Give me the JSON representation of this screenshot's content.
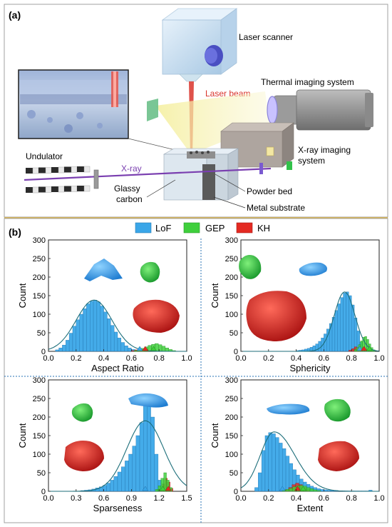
{
  "figure": {
    "panel_a": {
      "label": "(a)",
      "labels": {
        "laser_scanner": "Laser scanner",
        "laser_beam": "Laser beam",
        "thermal_imaging_system": "Thermal imaging system",
        "xray_imaging_1": "X-ray imaging",
        "xray_imaging_2": "system",
        "undulator": "Undulator",
        "xray": "X-ray",
        "glassy_1": "Glassy",
        "glassy_2": "carbon",
        "powder_bed": "Powder bed",
        "metal_substrate": "Metal substrate"
      },
      "colors": {
        "laser": "#d9342b",
        "xray": "#7a3fb0",
        "scanner_box": "#c8dff0",
        "camera_body": "#8e8e8e",
        "xray_box": "#a39a94",
        "divider": "#e0b84a"
      }
    },
    "panel_b": {
      "label": "(b)",
      "legend": [
        {
          "name": "LoF",
          "color": "#3aa6e8"
        },
        {
          "name": "GEP",
          "color": "#3fcf3c"
        },
        {
          "name": "KH",
          "color": "#e42a22"
        }
      ]
    }
  },
  "chart_data": [
    {
      "type": "bar",
      "xlabel": "Aspect Ratio",
      "ylabel": "Count",
      "xlim": [
        0.0,
        1.0
      ],
      "ylim": [
        0,
        300
      ],
      "xticks": [
        "0.0",
        "0.2",
        "0.4",
        "0.6",
        "0.8",
        "1.0"
      ],
      "yticks": [
        "0",
        "50",
        "100",
        "150",
        "200",
        "250",
        "300"
      ],
      "series": [
        {
          "name": "LoF",
          "start": 0.05,
          "width": 0.025,
          "values": [
            4,
            9,
            17,
            30,
            49,
            68,
            85,
            100,
            115,
            128,
            135,
            138,
            133,
            122,
            106,
            88,
            70,
            52,
            36,
            24,
            15,
            9,
            5,
            3
          ]
        },
        {
          "name": "GEP",
          "start": 0.62,
          "width": 0.025,
          "values": [
            2,
            4,
            8,
            12,
            16,
            19,
            21,
            18,
            14,
            9,
            5,
            2
          ]
        },
        {
          "name": "KH",
          "start": 0.6,
          "width": 0.025,
          "values": [
            2,
            4,
            6,
            4,
            2
          ]
        }
      ],
      "fit": {
        "name": "LoF",
        "mean": 0.33,
        "sd": 0.13,
        "peak": 138
      },
      "markers": [
        {
          "name": "LoF",
          "x": 0.66
        },
        {
          "name": "KH",
          "x": 0.7
        },
        {
          "name": "GEP",
          "x": 0.76
        }
      ]
    },
    {
      "type": "bar",
      "xlabel": "Sphericity",
      "ylabel": "Count",
      "xlim": [
        0.0,
        1.0
      ],
      "ylim": [
        0,
        300
      ],
      "xticks": [
        "0.0",
        "0.2",
        "0.4",
        "0.6",
        "0.8",
        "1.0"
      ],
      "yticks": [
        "0",
        "50",
        "100",
        "150",
        "200",
        "250",
        "300"
      ],
      "series": [
        {
          "name": "LoF",
          "start": 0.4,
          "width": 0.02,
          "values": [
            2,
            3,
            4,
            6,
            8,
            11,
            15,
            20,
            27,
            36,
            47,
            60,
            75,
            92,
            110,
            128,
            145,
            157,
            160,
            150,
            125,
            90,
            55,
            25,
            10,
            4
          ]
        },
        {
          "name": "GEP",
          "start": 0.82,
          "width": 0.015,
          "values": [
            5,
            10,
            18,
            28,
            38,
            40,
            32,
            20,
            10,
            4
          ]
        },
        {
          "name": "KH",
          "start": 0.78,
          "width": 0.02,
          "values": [
            3,
            7,
            12,
            9,
            4
          ]
        }
      ],
      "fit": {
        "name": "LoF",
        "mean": 0.75,
        "sd": 0.075,
        "peak": 160
      },
      "markers": [
        {
          "name": "LoF",
          "x": 0.86
        },
        {
          "name": "KH",
          "x": 0.89
        },
        {
          "name": "GEP",
          "x": 0.93
        }
      ]
    },
    {
      "type": "bar",
      "xlabel": "Sparseness",
      "ylabel": "Count",
      "xlim": [
        0.0,
        1.5
      ],
      "ylim": [
        0,
        300
      ],
      "xticks": [
        "0.0",
        "0.3",
        "0.6",
        "0.9",
        "1.2",
        "1.5"
      ],
      "yticks": [
        "0",
        "50",
        "100",
        "150",
        "200",
        "250",
        "300"
      ],
      "series": [
        {
          "name": "LoF",
          "start": 0.35,
          "width": 0.04,
          "values": [
            2,
            3,
            4,
            6,
            9,
            12,
            16,
            22,
            30,
            40,
            52,
            66,
            82,
            100,
            122,
            150,
            185,
            230,
            252,
            200,
            100,
            30,
            5
          ]
        },
        {
          "name": "GEP",
          "start": 1.16,
          "width": 0.03,
          "values": [
            5,
            15,
            35,
            50,
            30,
            10
          ]
        },
        {
          "name": "KH",
          "start": 1.2,
          "width": 0.03,
          "values": [
            5,
            20,
            35,
            25,
            8
          ]
        }
      ],
      "fit": {
        "name": "LoF",
        "mean": 1.05,
        "sd": 0.2,
        "peak": 190
      },
      "markers": [
        {
          "name": "LoF",
          "x": 1.05
        },
        {
          "name": "GEP",
          "x": 1.24
        },
        {
          "name": "KH",
          "x": 1.3
        }
      ]
    },
    {
      "type": "bar",
      "xlabel": "Extent",
      "ylabel": "Count",
      "xlim": [
        0.0,
        1.0
      ],
      "ylim": [
        0,
        300
      ],
      "xticks": [
        "0.0",
        "0.2",
        "0.4",
        "0.6",
        "0.8",
        "1.0"
      ],
      "yticks": [
        "0",
        "50",
        "100",
        "150",
        "200",
        "250",
        "300"
      ],
      "series": [
        {
          "name": "LoF",
          "start": 0.1,
          "width": 0.025,
          "values": [
            10,
            50,
            110,
            150,
            158,
            155,
            145,
            130,
            115,
            95,
            75,
            58,
            44,
            33,
            25,
            19,
            14,
            10,
            7,
            5,
            4,
            3,
            2,
            2,
            1,
            1,
            1,
            1,
            1,
            1,
            1,
            1,
            1,
            3
          ]
        },
        {
          "name": "GEP",
          "start": 0.3,
          "width": 0.025,
          "values": [
            3,
            5,
            8,
            12,
            15,
            16,
            14,
            10,
            7,
            4,
            2
          ]
        },
        {
          "name": "KH",
          "start": 0.32,
          "width": 0.025,
          "values": [
            4,
            10,
            18,
            22,
            18,
            10,
            4
          ]
        }
      ],
      "fit": {
        "name": "LoF",
        "mean": 0.24,
        "sd": 0.1,
        "peak": 160,
        "tail": true
      },
      "markers": [
        {
          "name": "LoF",
          "x": 0.3
        },
        {
          "name": "KH",
          "x": 0.41
        },
        {
          "name": "GEP",
          "x": 0.45
        }
      ]
    }
  ]
}
